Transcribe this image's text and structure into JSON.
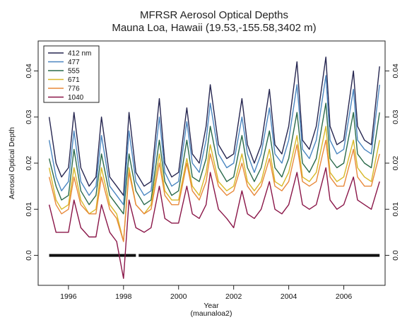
{
  "chart_data": {
    "type": "line",
    "title": "MFRSR Aerosol Optical Depths",
    "subtitle": "Mauna Loa, Hawaii (19.53,-155.58,3402 m)",
    "xlabel": "Year",
    "xlabel_sub": "(maunaloa2)",
    "ylabel": "Aerosol Optical Depth",
    "xlim": [
      1994.9,
      2007.5
    ],
    "ylim": [
      -0.0065,
      0.0465
    ],
    "x_ticks": [
      1996,
      1998,
      2000,
      2002,
      2004,
      2006
    ],
    "x_tick_labels": [
      "1996",
      "1998",
      "2000",
      "2002",
      "2004",
      "2006"
    ],
    "y_ticks": [
      0.0,
      0.01,
      0.02,
      0.03,
      0.04
    ],
    "y_tick_labels": [
      "0.0",
      "0.01",
      "0.02",
      "0.03",
      "0.04"
    ],
    "legend_position": "top-left",
    "x": [
      1995.3,
      1995.55,
      1995.75,
      1996.0,
      1996.2,
      1996.45,
      1996.75,
      1997.0,
      1997.2,
      1997.5,
      1997.75,
      1998.0,
      1998.2,
      1998.45,
      1998.75,
      1999.0,
      1999.3,
      1999.5,
      1999.75,
      2000.0,
      2000.3,
      2000.5,
      2000.75,
      2001.0,
      2001.15,
      2001.45,
      2001.75,
      2002.0,
      2002.3,
      2002.5,
      2002.75,
      2003.0,
      2003.3,
      2003.5,
      2003.75,
      2004.0,
      2004.3,
      2004.5,
      2004.75,
      2005.0,
      2005.35,
      2005.5,
      2005.75,
      2006.0,
      2006.35,
      2006.5,
      2006.75,
      2007.0,
      2007.3
    ],
    "series": [
      {
        "name": "412 nm",
        "color": "#262650",
        "values": [
          0.03,
          0.02,
          0.017,
          0.019,
          0.031,
          0.019,
          0.015,
          0.017,
          0.03,
          0.017,
          0.015,
          0.013,
          0.031,
          0.018,
          0.015,
          0.016,
          0.034,
          0.02,
          0.017,
          0.018,
          0.032,
          0.022,
          0.02,
          0.028,
          0.037,
          0.024,
          0.021,
          0.022,
          0.034,
          0.024,
          0.02,
          0.024,
          0.036,
          0.024,
          0.022,
          0.028,
          0.042,
          0.025,
          0.023,
          0.028,
          0.043,
          0.028,
          0.024,
          0.025,
          0.04,
          0.028,
          0.025,
          0.024,
          0.041
        ]
      },
      {
        "name": "477",
        "color": "#4a86c0",
        "values": [
          0.025,
          0.017,
          0.014,
          0.016,
          0.027,
          0.016,
          0.013,
          0.015,
          0.026,
          0.015,
          0.013,
          0.011,
          0.027,
          0.016,
          0.013,
          0.014,
          0.03,
          0.018,
          0.015,
          0.016,
          0.029,
          0.02,
          0.018,
          0.025,
          0.033,
          0.022,
          0.019,
          0.02,
          0.03,
          0.022,
          0.018,
          0.022,
          0.032,
          0.022,
          0.02,
          0.025,
          0.037,
          0.023,
          0.021,
          0.025,
          0.039,
          0.025,
          0.022,
          0.023,
          0.036,
          0.025,
          0.023,
          0.022,
          0.037
        ]
      },
      {
        "name": "555",
        "color": "#2a6a4a",
        "values": [
          0.021,
          0.015,
          0.012,
          0.013,
          0.023,
          0.014,
          0.011,
          0.013,
          0.022,
          0.013,
          0.011,
          0.009,
          0.022,
          0.014,
          0.011,
          0.012,
          0.025,
          0.016,
          0.013,
          0.014,
          0.025,
          0.017,
          0.016,
          0.021,
          0.028,
          0.019,
          0.016,
          0.017,
          0.026,
          0.019,
          0.016,
          0.019,
          0.027,
          0.019,
          0.017,
          0.021,
          0.031,
          0.02,
          0.018,
          0.021,
          0.033,
          0.021,
          0.019,
          0.02,
          0.031,
          0.022,
          0.02,
          0.019,
          0.031
        ]
      },
      {
        "name": "671",
        "color": "#d8b828",
        "values": [
          0.019,
          0.012,
          0.01,
          0.011,
          0.019,
          0.012,
          0.009,
          0.01,
          0.019,
          0.011,
          0.009,
          0.003,
          0.019,
          0.011,
          0.009,
          0.011,
          0.022,
          0.014,
          0.012,
          0.012,
          0.021,
          0.015,
          0.013,
          0.018,
          0.024,
          0.016,
          0.014,
          0.015,
          0.022,
          0.016,
          0.014,
          0.016,
          0.023,
          0.016,
          0.015,
          0.018,
          0.026,
          0.017,
          0.016,
          0.018,
          0.028,
          0.018,
          0.016,
          0.017,
          0.025,
          0.019,
          0.017,
          0.016,
          0.025
        ]
      },
      {
        "name": "776",
        "color": "#e8883a",
        "values": [
          0.017,
          0.011,
          0.009,
          0.01,
          0.017,
          0.011,
          0.009,
          0.009,
          0.017,
          0.01,
          0.008,
          0.003,
          0.018,
          0.011,
          0.009,
          0.01,
          0.02,
          0.013,
          0.011,
          0.011,
          0.02,
          0.014,
          0.012,
          0.016,
          0.022,
          0.015,
          0.013,
          0.014,
          0.02,
          0.015,
          0.013,
          0.015,
          0.021,
          0.015,
          0.014,
          0.016,
          0.024,
          0.016,
          0.015,
          0.016,
          0.025,
          0.017,
          0.015,
          0.015,
          0.023,
          0.017,
          0.015,
          0.015,
          0.022
        ]
      },
      {
        "name": "1040",
        "color": "#8a1648",
        "values": [
          0.011,
          0.005,
          0.005,
          0.005,
          0.012,
          0.006,
          0.004,
          0.004,
          0.011,
          0.005,
          0.003,
          -0.005,
          0.012,
          0.006,
          0.005,
          0.006,
          0.015,
          0.008,
          0.007,
          0.007,
          0.015,
          0.009,
          0.008,
          0.011,
          0.018,
          0.01,
          0.008,
          0.006,
          0.014,
          0.009,
          0.008,
          0.01,
          0.016,
          0.01,
          0.009,
          0.011,
          0.018,
          0.011,
          0.01,
          0.011,
          0.019,
          0.012,
          0.01,
          0.011,
          0.017,
          0.012,
          0.011,
          0.01,
          0.016
        ]
      }
    ],
    "zero_band": {
      "color": "#111111",
      "y": 0.0,
      "x_range": [
        1995.3,
        2007.3
      ],
      "gap": [
        1998.45,
        1998.55
      ]
    }
  }
}
